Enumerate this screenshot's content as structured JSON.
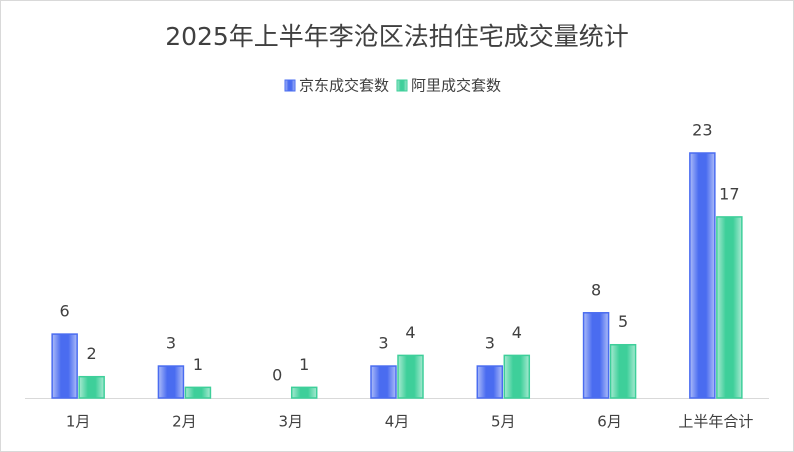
{
  "chart_data": {
    "type": "bar",
    "title": "2025年上半年李沧区法拍住宅成交量统计",
    "categories": [
      "1月",
      "2月",
      "3月",
      "4月",
      "5月",
      "6月",
      "上半年合计"
    ],
    "series": [
      {
        "name": "京东成交套数",
        "color": "#4a6cf0",
        "values": [
          6,
          3,
          0,
          3,
          3,
          8,
          23
        ]
      },
      {
        "name": "阿里成交套数",
        "color": "#3ecf9a",
        "values": [
          2,
          1,
          1,
          4,
          4,
          5,
          17
        ]
      }
    ],
    "legend": "top"
  }
}
